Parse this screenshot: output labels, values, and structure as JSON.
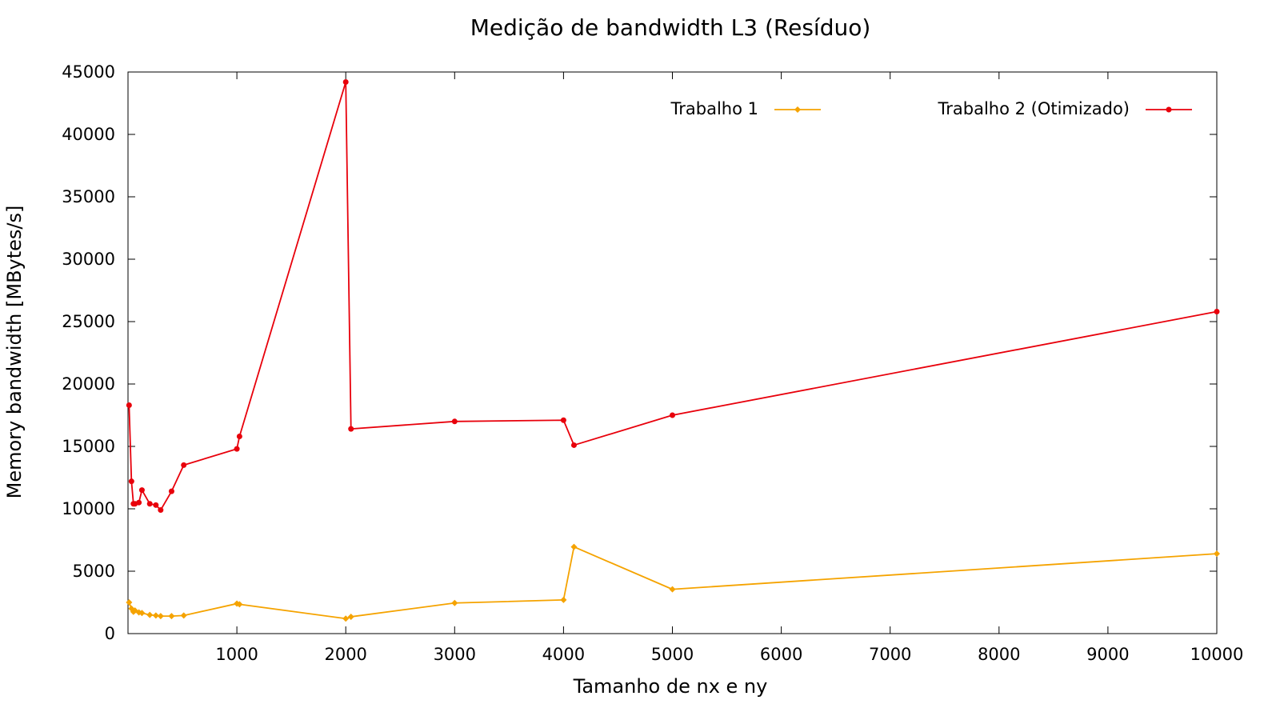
{
  "chart_data": {
    "type": "line",
    "title": "Medição de bandwidth L3 (Resíduo)",
    "xlabel": "Tamanho de nx e ny",
    "ylabel": "Memory bandwidth [MBytes/s]",
    "xlim": [
      0,
      10000
    ],
    "ylim": [
      0,
      45000
    ],
    "xticks": [
      1000,
      2000,
      3000,
      4000,
      5000,
      6000,
      7000,
      8000,
      9000,
      10000
    ],
    "yticks": [
      0,
      5000,
      10000,
      15000,
      20000,
      25000,
      30000,
      35000,
      40000,
      45000
    ],
    "grid": false,
    "legend_position": "top-right",
    "series": [
      {
        "name": "Trabalho 1",
        "color": "#f5a300",
        "marker": "diamond",
        "x": [
          10,
          32,
          50,
          64,
          100,
          128,
          200,
          256,
          300,
          400,
          512,
          1000,
          1024,
          2000,
          2048,
          3000,
          4000,
          4096,
          5000,
          10000
        ],
        "y": [
          2500,
          2000,
          1750,
          1850,
          1700,
          1650,
          1500,
          1450,
          1400,
          1400,
          1450,
          2400,
          2350,
          1200,
          1350,
          2450,
          2700,
          6950,
          3550,
          6400
        ]
      },
      {
        "name": "Trabalho 2 (Otimizado)",
        "color": "#e8000b",
        "marker": "circle",
        "x": [
          10,
          32,
          50,
          64,
          100,
          128,
          200,
          256,
          300,
          400,
          512,
          1000,
          1024,
          2000,
          2048,
          3000,
          4000,
          4096,
          5000,
          10000
        ],
        "y": [
          18300,
          12200,
          10400,
          10400,
          10500,
          11500,
          10400,
          10300,
          9900,
          11400,
          13500,
          14800,
          15800,
          44200,
          16400,
          17000,
          17100,
          15100,
          17500,
          25800
        ]
      }
    ]
  }
}
